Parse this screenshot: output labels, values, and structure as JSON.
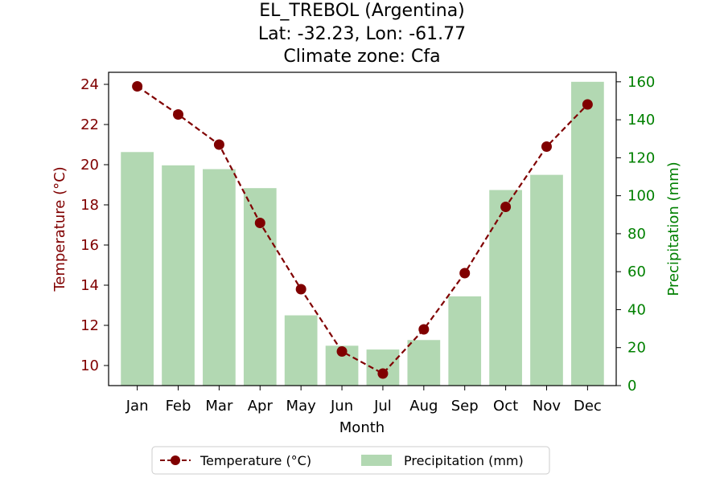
{
  "chart_data": {
    "type": "bar+line",
    "title": [
      "EL_TREBOL (Argentina)",
      "Lat: -32.23, Lon: -61.77",
      "Climate zone: Cfa"
    ],
    "xlabel": "Month",
    "categories": [
      "Jan",
      "Feb",
      "Mar",
      "Apr",
      "May",
      "Jun",
      "Jul",
      "Aug",
      "Sep",
      "Oct",
      "Nov",
      "Dec"
    ],
    "temperature": {
      "name": "Temperature (°C)",
      "axis_label": "Temperature (°C)",
      "values": [
        23.9,
        22.5,
        21.0,
        17.1,
        13.8,
        10.7,
        9.6,
        11.8,
        14.6,
        17.9,
        20.9,
        23.0
      ],
      "ylim": [
        9.0,
        24.6
      ],
      "ticks": [
        10,
        12,
        14,
        16,
        18,
        20,
        22,
        24
      ],
      "color": "#800000",
      "style": "dashed-line-circle-markers"
    },
    "precipitation": {
      "name": "Precipitation (mm)",
      "axis_label": "Precipitation (mm)",
      "values": [
        123,
        116,
        114,
        104,
        37,
        21,
        19,
        24,
        47,
        103,
        111,
        160
      ],
      "ylim": [
        0,
        165
      ],
      "ticks": [
        0,
        20,
        40,
        60,
        80,
        100,
        120,
        140,
        160
      ],
      "color": "#b2d8b2",
      "axis_color": "#008000"
    },
    "legend": {
      "placement": "bottom-center"
    },
    "grid": false
  }
}
